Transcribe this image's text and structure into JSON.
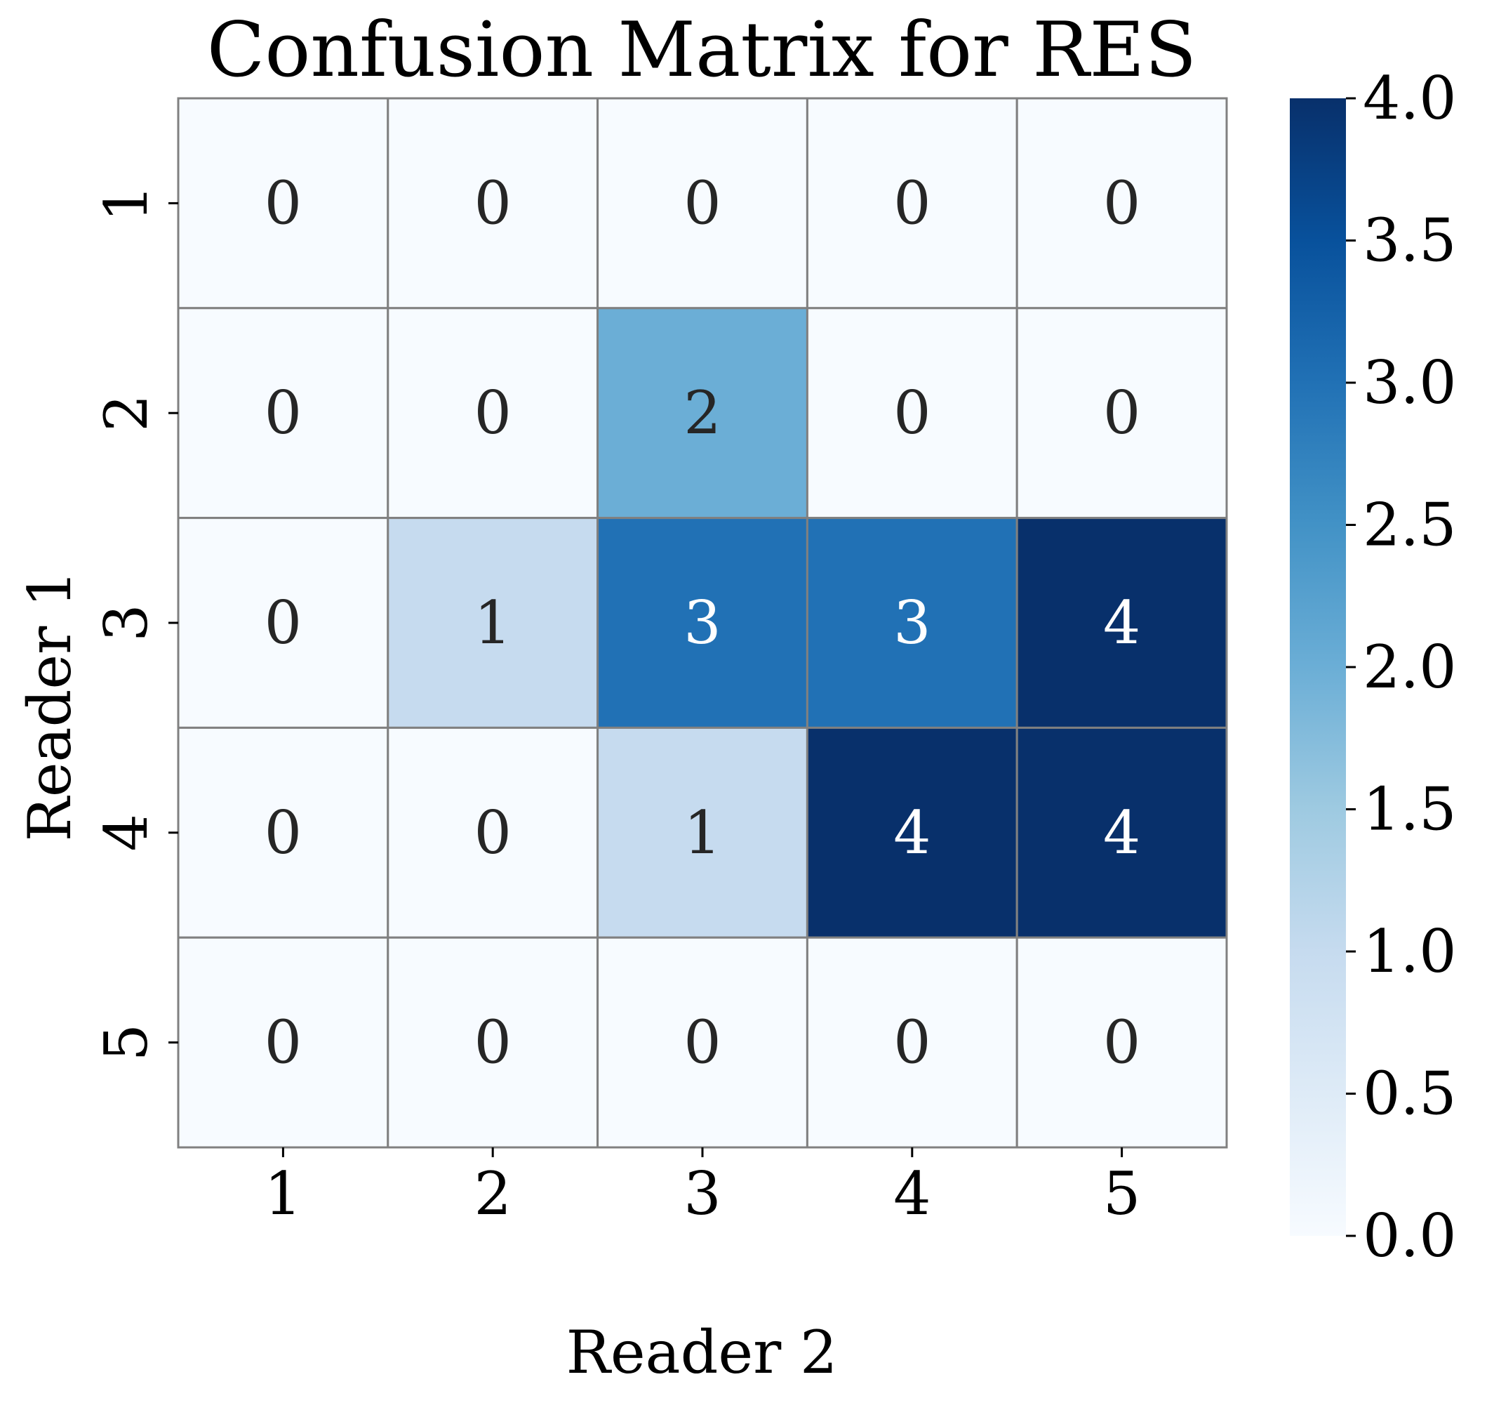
{
  "chart_data": {
    "type": "heatmap",
    "title": "Confusion Matrix for RES",
    "xlabel": "Reader 2",
    "ylabel": "Reader 1",
    "x_categories": [
      "1",
      "2",
      "3",
      "4",
      "5"
    ],
    "y_categories": [
      "1",
      "2",
      "3",
      "4",
      "5"
    ],
    "values": [
      [
        0,
        0,
        0,
        0,
        0
      ],
      [
        0,
        0,
        2,
        0,
        0
      ],
      [
        0,
        1,
        3,
        3,
        4
      ],
      [
        0,
        0,
        1,
        4,
        4
      ],
      [
        0,
        0,
        0,
        0,
        0
      ]
    ],
    "colorscale": "Blues",
    "vmin": 0,
    "vmax": 4,
    "colorbar_ticks": [
      "0.0",
      "0.5",
      "1.0",
      "1.5",
      "2.0",
      "2.5",
      "3.0",
      "3.5",
      "4.0"
    ],
    "grid_line_color": "#808080",
    "annotation_dark_color": "#262626",
    "annotation_light_color": "#ffffff",
    "legend": "colorbar-right"
  }
}
